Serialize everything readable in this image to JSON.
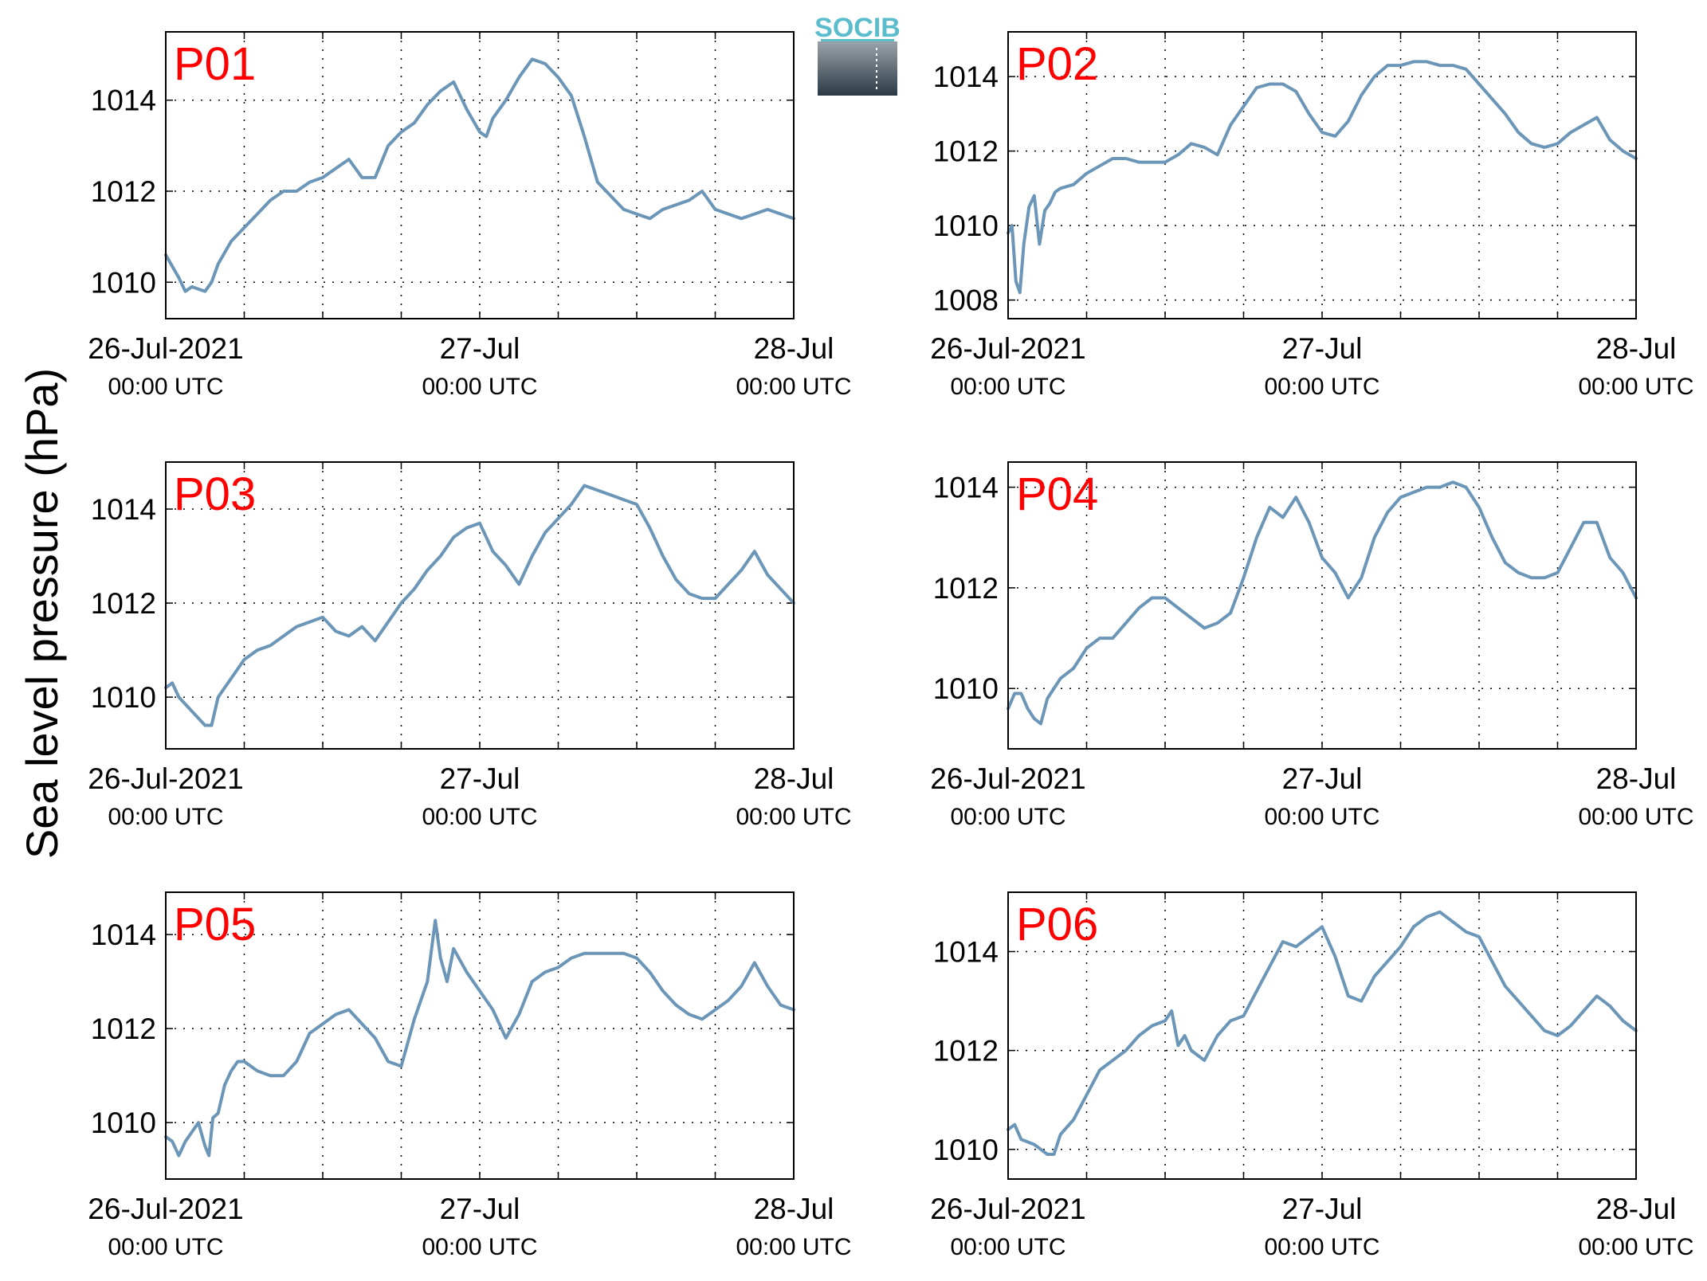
{
  "figure": {
    "ylabel": "Sea level pressure (hPa)",
    "logo_text": "SOCIB",
    "line_color": "#6b96b8",
    "label_color": "#ff0000"
  },
  "chart_data": [
    {
      "type": "line",
      "title": "P01",
      "ylim": [
        1009.2,
        1015.5
      ],
      "xlim_hours": [
        0,
        48
      ],
      "yticks": [
        1010,
        1012,
        1014
      ],
      "yticklabels": [
        "1010",
        "1012",
        "1014"
      ],
      "xticklabels": [
        {
          "date": "26-Jul-2021",
          "time": "00:00 UTC"
        },
        {
          "date": "27-Jul",
          "time": "00:00 UTC"
        },
        {
          "date": "28-Jul",
          "time": "00:00 UTC"
        }
      ],
      "grid": true,
      "x": [
        0,
        1,
        1.5,
        2,
        3,
        3.5,
        4,
        5,
        6,
        7,
        8,
        9,
        10,
        11,
        12,
        13,
        14,
        15,
        16,
        17,
        18,
        19,
        20,
        21,
        22,
        23,
        24,
        24.5,
        25,
        26,
        27,
        28,
        29,
        30,
        31,
        32,
        33,
        34,
        35,
        36,
        37,
        38,
        39,
        40,
        41,
        42,
        43,
        44,
        45,
        46,
        47,
        48
      ],
      "y": [
        1010.6,
        1010.1,
        1009.8,
        1009.9,
        1009.8,
        1010.0,
        1010.4,
        1010.9,
        1011.2,
        1011.5,
        1011.8,
        1012.0,
        1012.0,
        1012.2,
        1012.3,
        1012.5,
        1012.7,
        1012.3,
        1012.3,
        1013.0,
        1013.3,
        1013.5,
        1013.9,
        1014.2,
        1014.4,
        1013.8,
        1013.3,
        1013.2,
        1013.6,
        1014.0,
        1014.5,
        1014.9,
        1014.8,
        1014.5,
        1014.1,
        1013.2,
        1012.2,
        1011.9,
        1011.6,
        1011.5,
        1011.4,
        1011.6,
        1011.7,
        1011.8,
        1012.0,
        1011.6,
        1011.5,
        1011.4,
        1011.5,
        1011.6,
        1011.5,
        1011.4
      ]
    },
    {
      "type": "line",
      "title": "P02",
      "ylim": [
        1007.5,
        1015.2
      ],
      "xlim_hours": [
        0,
        48
      ],
      "yticks": [
        1008,
        1010,
        1012,
        1014
      ],
      "yticklabels": [
        "1008",
        "1010",
        "1012",
        "1014"
      ],
      "xticklabels": [
        {
          "date": "26-Jul-2021",
          "time": "00:00 UTC"
        },
        {
          "date": "27-Jul",
          "time": "00:00 UTC"
        },
        {
          "date": "28-Jul",
          "time": "00:00 UTC"
        }
      ],
      "grid": true,
      "x": [
        0,
        0.3,
        0.6,
        0.9,
        1.2,
        1.6,
        2,
        2.4,
        2.8,
        3.2,
        3.6,
        4,
        5,
        6,
        7,
        8,
        9,
        10,
        11,
        12,
        13,
        14,
        15,
        16,
        17,
        18,
        19,
        20,
        21,
        22,
        23,
        24,
        25,
        26,
        27,
        28,
        29,
        30,
        31,
        32,
        33,
        34,
        35,
        36,
        37,
        38,
        39,
        40,
        41,
        42,
        43,
        44,
        45,
        46,
        47,
        48
      ],
      "y": [
        1009.8,
        1010.0,
        1008.5,
        1008.2,
        1009.5,
        1010.5,
        1010.8,
        1009.5,
        1010.4,
        1010.6,
        1010.9,
        1011.0,
        1011.1,
        1011.4,
        1011.6,
        1011.8,
        1011.8,
        1011.7,
        1011.7,
        1011.7,
        1011.9,
        1012.2,
        1012.1,
        1011.9,
        1012.7,
        1013.2,
        1013.7,
        1013.8,
        1013.8,
        1013.6,
        1013.0,
        1012.5,
        1012.4,
        1012.8,
        1013.5,
        1014.0,
        1014.3,
        1014.3,
        1014.4,
        1014.4,
        1014.3,
        1014.3,
        1014.2,
        1013.8,
        1013.4,
        1013.0,
        1012.5,
        1012.2,
        1012.1,
        1012.2,
        1012.5,
        1012.7,
        1012.9,
        1012.3,
        1012.0,
        1011.8
      ]
    },
    {
      "type": "line",
      "title": "P03",
      "ylim": [
        1008.9,
        1015.0
      ],
      "xlim_hours": [
        0,
        48
      ],
      "yticks": [
        1010,
        1012,
        1014
      ],
      "yticklabels": [
        "1010",
        "1012",
        "1014"
      ],
      "xticklabels": [
        {
          "date": "26-Jul-2021",
          "time": "00:00 UTC"
        },
        {
          "date": "27-Jul",
          "time": "00:00 UTC"
        },
        {
          "date": "28-Jul",
          "time": "00:00 UTC"
        }
      ],
      "grid": true,
      "x": [
        0,
        0.5,
        1,
        2,
        3,
        3.5,
        4,
        5,
        6,
        7,
        8,
        9,
        10,
        11,
        12,
        13,
        14,
        15,
        16,
        17,
        18,
        19,
        20,
        21,
        22,
        23,
        24,
        25,
        26,
        27,
        28,
        29,
        30,
        31,
        32,
        33,
        34,
        35,
        36,
        37,
        38,
        39,
        40,
        41,
        42,
        43,
        44,
        45,
        46,
        47,
        48
      ],
      "y": [
        1010.2,
        1010.3,
        1010.0,
        1009.7,
        1009.4,
        1009.4,
        1010.0,
        1010.4,
        1010.8,
        1011.0,
        1011.1,
        1011.3,
        1011.5,
        1011.6,
        1011.7,
        1011.4,
        1011.3,
        1011.5,
        1011.2,
        1011.6,
        1012.0,
        1012.3,
        1012.7,
        1013.0,
        1013.4,
        1013.6,
        1013.7,
        1013.1,
        1012.8,
        1012.4,
        1013.0,
        1013.5,
        1013.8,
        1014.1,
        1014.5,
        1014.4,
        1014.3,
        1014.2,
        1014.1,
        1013.6,
        1013.0,
        1012.5,
        1012.2,
        1012.1,
        1012.1,
        1012.4,
        1012.7,
        1013.1,
        1012.6,
        1012.3,
        1012.0
      ]
    },
    {
      "type": "line",
      "title": "P04",
      "ylim": [
        1008.8,
        1014.5
      ],
      "xlim_hours": [
        0,
        48
      ],
      "yticks": [
        1010,
        1012,
        1014
      ],
      "yticklabels": [
        "1010",
        "1012",
        "1014"
      ],
      "xticklabels": [
        {
          "date": "26-Jul-2021",
          "time": "00:00 UTC"
        },
        {
          "date": "27-Jul",
          "time": "00:00 UTC"
        },
        {
          "date": "28-Jul",
          "time": "00:00 UTC"
        }
      ],
      "grid": true,
      "x": [
        0,
        0.5,
        1,
        1.5,
        2,
        2.5,
        3,
        4,
        5,
        6,
        7,
        8,
        9,
        10,
        11,
        12,
        13,
        14,
        15,
        16,
        17,
        18,
        19,
        20,
        21,
        22,
        23,
        24,
        25,
        26,
        27,
        28,
        29,
        30,
        31,
        32,
        33,
        34,
        35,
        36,
        37,
        38,
        39,
        40,
        41,
        42,
        43,
        44,
        45,
        46,
        47,
        48
      ],
      "y": [
        1009.6,
        1009.9,
        1009.9,
        1009.6,
        1009.4,
        1009.3,
        1009.8,
        1010.2,
        1010.4,
        1010.8,
        1011.0,
        1011.0,
        1011.3,
        1011.6,
        1011.8,
        1011.8,
        1011.6,
        1011.4,
        1011.2,
        1011.3,
        1011.5,
        1012.2,
        1013.0,
        1013.6,
        1013.4,
        1013.8,
        1013.3,
        1012.6,
        1012.3,
        1011.8,
        1012.2,
        1013.0,
        1013.5,
        1013.8,
        1013.9,
        1014.0,
        1014.0,
        1014.1,
        1014.0,
        1013.6,
        1013.0,
        1012.5,
        1012.3,
        1012.2,
        1012.2,
        1012.3,
        1012.8,
        1013.3,
        1013.3,
        1012.6,
        1012.3,
        1011.8
      ]
    },
    {
      "type": "line",
      "title": "P05",
      "ylim": [
        1008.8,
        1014.9
      ],
      "xlim_hours": [
        0,
        48
      ],
      "yticks": [
        1010,
        1012,
        1014
      ],
      "yticklabels": [
        "1010",
        "1012",
        "1014"
      ],
      "xticklabels": [
        {
          "date": "26-Jul-2021",
          "time": "00:00 UTC"
        },
        {
          "date": "27-Jul",
          "time": "00:00 UTC"
        },
        {
          "date": "28-Jul",
          "time": "00:00 UTC"
        }
      ],
      "grid": true,
      "x": [
        0,
        0.5,
        1,
        1.5,
        2,
        2.5,
        3,
        3.3,
        3.6,
        4,
        4.5,
        5,
        5.5,
        6,
        7,
        8,
        9,
        10,
        11,
        12,
        13,
        14,
        15,
        16,
        17,
        18,
        19,
        20,
        20.6,
        21,
        21.5,
        22,
        23,
        24,
        25,
        26,
        27,
        28,
        29,
        30,
        31,
        32,
        33,
        34,
        35,
        36,
        37,
        38,
        39,
        40,
        41,
        42,
        43,
        44,
        45,
        46,
        47,
        48
      ],
      "y": [
        1009.7,
        1009.6,
        1009.3,
        1009.6,
        1009.8,
        1010.0,
        1009.5,
        1009.3,
        1010.1,
        1010.2,
        1010.8,
        1011.1,
        1011.3,
        1011.3,
        1011.1,
        1011.0,
        1011.0,
        1011.3,
        1011.9,
        1012.1,
        1012.3,
        1012.4,
        1012.1,
        1011.8,
        1011.3,
        1011.2,
        1012.2,
        1013.0,
        1014.3,
        1013.5,
        1013.0,
        1013.7,
        1013.2,
        1012.8,
        1012.4,
        1011.8,
        1012.3,
        1013.0,
        1013.2,
        1013.3,
        1013.5,
        1013.6,
        1013.6,
        1013.6,
        1013.6,
        1013.5,
        1013.2,
        1012.8,
        1012.5,
        1012.3,
        1012.2,
        1012.4,
        1012.6,
        1012.9,
        1013.4,
        1012.9,
        1012.5,
        1012.4
      ]
    },
    {
      "type": "line",
      "title": "P06",
      "ylim": [
        1009.4,
        1015.2
      ],
      "xlim_hours": [
        0,
        48
      ],
      "yticks": [
        1010,
        1012,
        1014
      ],
      "yticklabels": [
        "1010",
        "1012",
        "1014"
      ],
      "xticklabels": [
        {
          "date": "26-Jul-2021",
          "time": "00:00 UTC"
        },
        {
          "date": "27-Jul",
          "time": "00:00 UTC"
        },
        {
          "date": "28-Jul",
          "time": "00:00 UTC"
        }
      ],
      "grid": true,
      "x": [
        0,
        0.5,
        1,
        2,
        3,
        3.5,
        4,
        5,
        6,
        7,
        8,
        9,
        10,
        11,
        12,
        12.5,
        13,
        13.5,
        14,
        15,
        16,
        17,
        18,
        19,
        20,
        21,
        22,
        23,
        24,
        25,
        26,
        27,
        28,
        29,
        30,
        31,
        32,
        33,
        34,
        35,
        36,
        37,
        38,
        39,
        40,
        41,
        42,
        43,
        44,
        45,
        46,
        47,
        48
      ],
      "y": [
        1010.4,
        1010.5,
        1010.2,
        1010.1,
        1009.9,
        1009.9,
        1010.3,
        1010.6,
        1011.1,
        1011.6,
        1011.8,
        1012.0,
        1012.3,
        1012.5,
        1012.6,
        1012.8,
        1012.1,
        1012.3,
        1012.0,
        1011.8,
        1012.3,
        1012.6,
        1012.7,
        1013.2,
        1013.7,
        1014.2,
        1014.1,
        1014.3,
        1014.5,
        1013.9,
        1013.1,
        1013.0,
        1013.5,
        1013.8,
        1014.1,
        1014.5,
        1014.7,
        1014.8,
        1014.6,
        1014.4,
        1014.3,
        1013.8,
        1013.3,
        1013.0,
        1012.7,
        1012.4,
        1012.3,
        1012.5,
        1012.8,
        1013.1,
        1012.9,
        1012.6,
        1012.4
      ]
    }
  ]
}
